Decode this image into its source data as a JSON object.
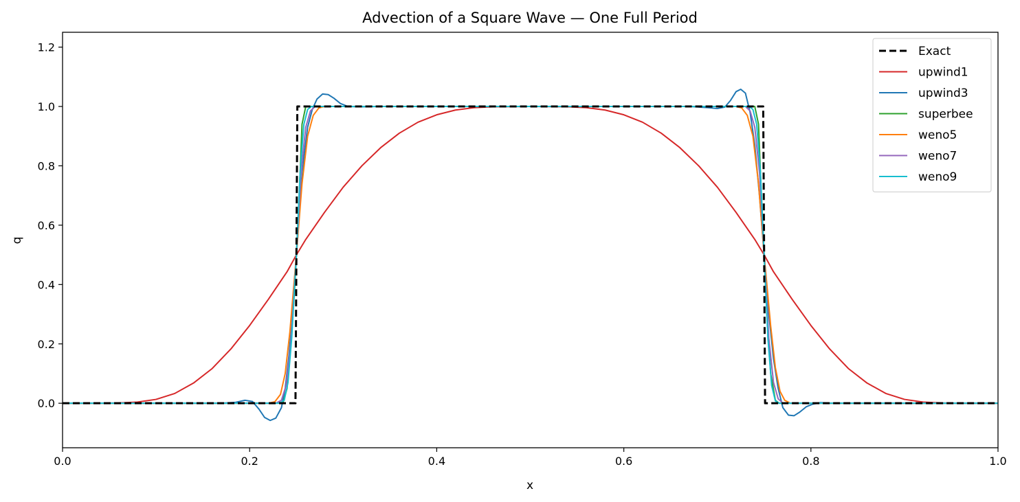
{
  "chart_data": {
    "type": "line",
    "title": "Advection of a Square Wave — One Full Period",
    "xlabel": "x",
    "ylabel": "q",
    "xlim": [
      0.0,
      1.0
    ],
    "ylim": [
      -0.15,
      1.25
    ],
    "xticks": [
      0.0,
      0.2,
      0.4,
      0.6,
      0.8,
      1.0
    ],
    "xtick_labels": [
      "0.0",
      "0.2",
      "0.4",
      "0.6",
      "0.8",
      "1.0"
    ],
    "yticks": [
      0.0,
      0.2,
      0.4,
      0.6,
      0.8,
      1.0,
      1.2
    ],
    "ytick_labels": [
      "0.0",
      "0.2",
      "0.4",
      "0.6",
      "0.8",
      "1.0",
      "1.2"
    ],
    "grid": false,
    "legend_position": "top-right",
    "series": [
      {
        "name": "Exact",
        "color": "#000000",
        "dashed": true,
        "width": 3,
        "points": [
          [
            0.0,
            0.0
          ],
          [
            0.247,
            0.0
          ],
          [
            0.249,
            0.0
          ],
          [
            0.251,
            1.0
          ],
          [
            0.253,
            1.0
          ],
          [
            0.747,
            1.0
          ],
          [
            0.749,
            1.0
          ],
          [
            0.751,
            0.0
          ],
          [
            0.753,
            0.0
          ],
          [
            1.0,
            0.0
          ]
        ]
      },
      {
        "name": "upwind1",
        "color": "#d62728",
        "dashed": false,
        "width": 2,
        "points": [
          [
            0.0,
            0.0
          ],
          [
            0.04,
            0.0
          ],
          [
            0.06,
            0.001
          ],
          [
            0.08,
            0.004
          ],
          [
            0.1,
            0.013
          ],
          [
            0.12,
            0.033
          ],
          [
            0.14,
            0.068
          ],
          [
            0.16,
            0.117
          ],
          [
            0.18,
            0.183
          ],
          [
            0.2,
            0.262
          ],
          [
            0.22,
            0.35
          ],
          [
            0.24,
            0.443
          ],
          [
            0.25,
            0.5
          ],
          [
            0.26,
            0.552
          ],
          [
            0.28,
            0.643
          ],
          [
            0.3,
            0.728
          ],
          [
            0.32,
            0.8
          ],
          [
            0.34,
            0.861
          ],
          [
            0.36,
            0.91
          ],
          [
            0.38,
            0.947
          ],
          [
            0.4,
            0.972
          ],
          [
            0.42,
            0.988
          ],
          [
            0.44,
            0.996
          ],
          [
            0.46,
            0.999
          ],
          [
            0.5,
            1.0
          ],
          [
            0.54,
            0.999
          ],
          [
            0.56,
            0.996
          ],
          [
            0.58,
            0.988
          ],
          [
            0.6,
            0.972
          ],
          [
            0.62,
            0.947
          ],
          [
            0.64,
            0.91
          ],
          [
            0.66,
            0.861
          ],
          [
            0.68,
            0.8
          ],
          [
            0.7,
            0.728
          ],
          [
            0.72,
            0.643
          ],
          [
            0.74,
            0.552
          ],
          [
            0.75,
            0.5
          ],
          [
            0.76,
            0.443
          ],
          [
            0.78,
            0.35
          ],
          [
            0.8,
            0.262
          ],
          [
            0.82,
            0.183
          ],
          [
            0.84,
            0.117
          ],
          [
            0.86,
            0.068
          ],
          [
            0.88,
            0.033
          ],
          [
            0.9,
            0.013
          ],
          [
            0.92,
            0.004
          ],
          [
            0.94,
            0.001
          ],
          [
            0.96,
            0.0
          ],
          [
            1.0,
            0.0
          ]
        ]
      },
      {
        "name": "upwind3",
        "color": "#1f77b4",
        "dashed": false,
        "width": 2,
        "points": [
          [
            0.0,
            0.0
          ],
          [
            0.17,
            0.0
          ],
          [
            0.185,
            0.003
          ],
          [
            0.195,
            0.01
          ],
          [
            0.203,
            0.006
          ],
          [
            0.21,
            -0.02
          ],
          [
            0.216,
            -0.048
          ],
          [
            0.222,
            -0.058
          ],
          [
            0.228,
            -0.05
          ],
          [
            0.234,
            -0.015
          ],
          [
            0.238,
            0.05
          ],
          [
            0.242,
            0.16
          ],
          [
            0.246,
            0.3
          ],
          [
            0.25,
            0.5
          ],
          [
            0.254,
            0.68
          ],
          [
            0.258,
            0.83
          ],
          [
            0.262,
            0.93
          ],
          [
            0.267,
            0.99
          ],
          [
            0.272,
            1.025
          ],
          [
            0.278,
            1.042
          ],
          [
            0.284,
            1.04
          ],
          [
            0.29,
            1.028
          ],
          [
            0.297,
            1.01
          ],
          [
            0.305,
            1.0
          ],
          [
            0.32,
            0.999
          ],
          [
            0.34,
            1.0
          ],
          [
            0.67,
            1.0
          ],
          [
            0.69,
            0.996
          ],
          [
            0.7,
            0.993
          ],
          [
            0.708,
            0.998
          ],
          [
            0.714,
            1.02
          ],
          [
            0.72,
            1.05
          ],
          [
            0.725,
            1.058
          ],
          [
            0.73,
            1.045
          ],
          [
            0.735,
            0.98
          ],
          [
            0.74,
            0.87
          ],
          [
            0.745,
            0.7
          ],
          [
            0.75,
            0.5
          ],
          [
            0.755,
            0.3
          ],
          [
            0.76,
            0.15
          ],
          [
            0.765,
            0.05
          ],
          [
            0.77,
            -0.015
          ],
          [
            0.776,
            -0.04
          ],
          [
            0.782,
            -0.042
          ],
          [
            0.788,
            -0.03
          ],
          [
            0.795,
            -0.012
          ],
          [
            0.802,
            -0.003
          ],
          [
            0.81,
            0.002
          ],
          [
            0.82,
            0.0
          ],
          [
            1.0,
            0.0
          ]
        ]
      },
      {
        "name": "superbee",
        "color": "#2ca02c",
        "dashed": false,
        "width": 2,
        "points": [
          [
            0.0,
            0.0
          ],
          [
            0.23,
            0.0
          ],
          [
            0.236,
            0.005
          ],
          [
            0.24,
            0.05
          ],
          [
            0.244,
            0.2
          ],
          [
            0.248,
            0.38
          ],
          [
            0.25,
            0.5
          ],
          [
            0.253,
            0.7
          ],
          [
            0.256,
            0.94
          ],
          [
            0.26,
            1.0
          ],
          [
            0.74,
            1.0
          ],
          [
            0.744,
            0.94
          ],
          [
            0.747,
            0.7
          ],
          [
            0.75,
            0.5
          ],
          [
            0.753,
            0.3
          ],
          [
            0.757,
            0.1
          ],
          [
            0.762,
            0.01
          ],
          [
            0.766,
            0.0
          ],
          [
            1.0,
            0.0
          ]
        ]
      },
      {
        "name": "weno5",
        "color": "#ff7f0e",
        "dashed": false,
        "width": 2,
        "points": [
          [
            0.0,
            0.0
          ],
          [
            0.22,
            0.0
          ],
          [
            0.227,
            0.005
          ],
          [
            0.233,
            0.03
          ],
          [
            0.238,
            0.1
          ],
          [
            0.243,
            0.24
          ],
          [
            0.25,
            0.5
          ],
          [
            0.256,
            0.74
          ],
          [
            0.262,
            0.9
          ],
          [
            0.268,
            0.97
          ],
          [
            0.274,
            0.995
          ],
          [
            0.28,
            1.0
          ],
          [
            0.72,
            1.0
          ],
          [
            0.726,
            0.995
          ],
          [
            0.732,
            0.97
          ],
          [
            0.738,
            0.9
          ],
          [
            0.744,
            0.74
          ],
          [
            0.75,
            0.5
          ],
          [
            0.757,
            0.26
          ],
          [
            0.762,
            0.12
          ],
          [
            0.767,
            0.04
          ],
          [
            0.772,
            0.01
          ],
          [
            0.778,
            0.0
          ],
          [
            1.0,
            0.0
          ]
        ]
      },
      {
        "name": "weno7",
        "color": "#9467bd",
        "dashed": false,
        "width": 2,
        "points": [
          [
            0.0,
            0.0
          ],
          [
            0.228,
            0.0
          ],
          [
            0.234,
            0.01
          ],
          [
            0.239,
            0.06
          ],
          [
            0.244,
            0.2
          ],
          [
            0.25,
            0.5
          ],
          [
            0.255,
            0.78
          ],
          [
            0.26,
            0.93
          ],
          [
            0.265,
            0.985
          ],
          [
            0.27,
            1.0
          ],
          [
            0.73,
            1.0
          ],
          [
            0.735,
            0.985
          ],
          [
            0.74,
            0.93
          ],
          [
            0.745,
            0.78
          ],
          [
            0.75,
            0.5
          ],
          [
            0.755,
            0.22
          ],
          [
            0.76,
            0.07
          ],
          [
            0.765,
            0.015
          ],
          [
            0.77,
            0.0
          ],
          [
            1.0,
            0.0
          ]
        ]
      },
      {
        "name": "weno9",
        "color": "#17becf",
        "dashed": false,
        "width": 2,
        "points": [
          [
            0.0,
            0.0
          ],
          [
            0.232,
            0.0
          ],
          [
            0.237,
            0.01
          ],
          [
            0.241,
            0.07
          ],
          [
            0.245,
            0.22
          ],
          [
            0.25,
            0.5
          ],
          [
            0.254,
            0.78
          ],
          [
            0.258,
            0.94
          ],
          [
            0.262,
            0.99
          ],
          [
            0.266,
            1.0
          ],
          [
            0.734,
            1.0
          ],
          [
            0.738,
            0.99
          ],
          [
            0.742,
            0.94
          ],
          [
            0.746,
            0.78
          ],
          [
            0.75,
            0.5
          ],
          [
            0.754,
            0.22
          ],
          [
            0.758,
            0.06
          ],
          [
            0.762,
            0.008
          ],
          [
            0.766,
            0.0
          ],
          [
            1.0,
            0.0
          ]
        ]
      }
    ]
  }
}
